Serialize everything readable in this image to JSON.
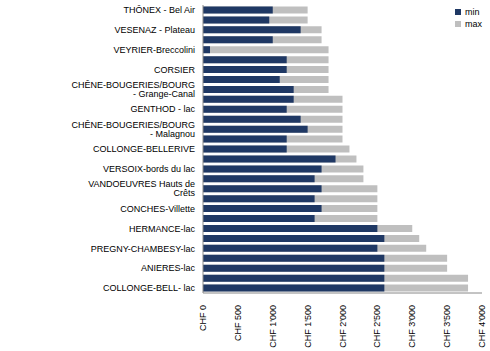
{
  "chart_data": {
    "type": "bar",
    "orientation": "horizontal",
    "stacked": false,
    "grid": false,
    "legend": "upper right",
    "categories": [
      "THÔNEX - Bel Air",
      null,
      "VESENAZ - Plateau",
      null,
      "VEYRIER-Breccolini",
      null,
      "CORSIER",
      null,
      "CHÊNE-BOUGERIES/BOURG - Grange-Canal",
      null,
      "GENTHOD - lac",
      null,
      "CHÊNE-BOUGERIES/BOURG - Malagnou",
      null,
      "COLLONGE-BELLERIVE",
      null,
      "VERSOIX-bords du lac",
      null,
      "VANDOEUVRES Hauts de Crêts",
      null,
      "CONCHES-Villette",
      null,
      "HERMANCE-lac",
      null,
      "PREGNY-CHAMBESY-lac",
      null,
      "ANIERES-lac",
      null,
      "COLLONGE-BELL- lac"
    ],
    "series": [
      {
        "name": "min",
        "color": "#1f3864",
        "values": [
          1000,
          950,
          1400,
          1000,
          100,
          1200,
          1200,
          1100,
          1300,
          1300,
          1200,
          1400,
          1500,
          1200,
          1200,
          1900,
          1700,
          1600,
          1700,
          1600,
          1700,
          1600,
          2500,
          2600,
          2500,
          2600,
          2600,
          2600,
          2600
        ]
      },
      {
        "name": "max",
        "color": "#bfbfbf",
        "values": [
          1500,
          1500,
          1700,
          1700,
          1800,
          1800,
          1800,
          1800,
          1800,
          2000,
          2000,
          2000,
          2000,
          2000,
          2100,
          2200,
          2300,
          2300,
          2500,
          2500,
          2500,
          2500,
          3000,
          3100,
          3200,
          3500,
          3500,
          3800,
          3800
        ]
      }
    ],
    "xlim": [
      0,
      4000
    ],
    "xticks": [
      {
        "value": 0,
        "label": "CHF 0"
      },
      {
        "value": 500,
        "label": "CHF 500"
      },
      {
        "value": 1000,
        "label": "CHF 1'000"
      },
      {
        "value": 1500,
        "label": "CHF 1'500"
      },
      {
        "value": 2000,
        "label": "CHF 2'000"
      },
      {
        "value": 2500,
        "label": "CHF 2'500"
      },
      {
        "value": 3000,
        "label": "CHF 3'000"
      },
      {
        "value": 3500,
        "label": "CHF 3'500"
      },
      {
        "value": 4000,
        "label": "CHF 4'000"
      }
    ]
  }
}
